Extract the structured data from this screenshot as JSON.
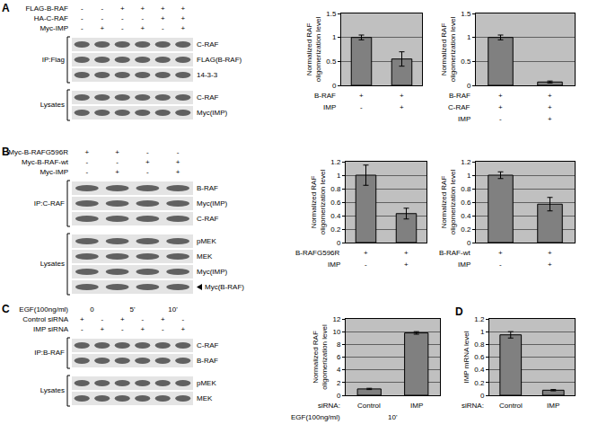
{
  "chart_data": [
    {
      "type": "bar",
      "ylabel": "Normalized RAF oligomerization level",
      "categories": [
        null,
        null
      ],
      "values": [
        1.0,
        0.55
      ],
      "error": [
        0.05,
        0.15
      ],
      "color": "#808080",
      "ylim": [
        0,
        1.5
      ],
      "yticks": [
        0,
        0.5,
        1,
        1.5
      ],
      "grid": true,
      "conditions": [
        {
          "label": "B-RAF",
          "values": [
            "+",
            "+"
          ]
        },
        {
          "label": "IMP",
          "values": [
            "-",
            "+"
          ]
        }
      ]
    },
    {
      "type": "bar",
      "ylabel": "Normalized RAF oligomerization level",
      "categories": [
        null,
        null
      ],
      "values": [
        1.0,
        0.07
      ],
      "error": [
        0.05,
        0.02
      ],
      "color": "#808080",
      "ylim": [
        0,
        1.5
      ],
      "yticks": [
        0,
        0.5,
        1,
        1.5
      ],
      "grid": true,
      "conditions": [
        {
          "label": "B-RAF",
          "values": [
            "+",
            "+"
          ]
        },
        {
          "label": "C-RAF",
          "values": [
            "+",
            "+"
          ]
        },
        {
          "label": "IMP",
          "values": [
            "-",
            "+"
          ]
        }
      ]
    },
    {
      "type": "bar",
      "ylabel": "Normalized RAF oligomerization level",
      "categories": [
        null,
        null
      ],
      "values": [
        1.0,
        0.43
      ],
      "error": [
        0.15,
        0.08
      ],
      "color": "#808080",
      "ylim": [
        0,
        1.2
      ],
      "yticks": [
        0,
        0.2,
        0.4,
        0.6,
        0.8,
        1,
        1.2
      ],
      "grid": true,
      "conditions": [
        {
          "label": "B-RAFG596R",
          "values": [
            "+",
            "+"
          ]
        },
        {
          "label": "IMP",
          "values": [
            "-",
            "+"
          ]
        }
      ]
    },
    {
      "type": "bar",
      "ylabel": "Normalized RAF oligomerization level",
      "categories": [
        null,
        null
      ],
      "values": [
        1.0,
        0.57
      ],
      "error": [
        0.05,
        0.1
      ],
      "color": "#808080",
      "ylim": [
        0,
        1.2
      ],
      "yticks": [
        0,
        0.2,
        0.4,
        0.6,
        0.8,
        1,
        1.2
      ],
      "grid": true,
      "conditions": [
        {
          "label": "B-RAF-wt",
          "values": [
            "+",
            "+"
          ]
        },
        {
          "label": "IMP",
          "values": [
            "-",
            "+"
          ]
        }
      ]
    },
    {
      "type": "bar",
      "ylabel": "Normalized RAF oligomerization level",
      "categories": [
        null,
        null
      ],
      "values": [
        1.0,
        9.8
      ],
      "error": [
        0.1,
        0.2
      ],
      "color": "#808080",
      "ylim": [
        0,
        12
      ],
      "yticks": [
        0,
        2,
        4,
        6,
        8,
        10,
        12
      ],
      "grid": true,
      "conditions": [
        {
          "label": "siRNA:",
          "values": [
            "Control",
            "IMP"
          ]
        },
        {
          "label": "EGF(100ng/ml)",
          "values": [
            "10'"
          ]
        }
      ]
    },
    {
      "type": "bar",
      "panel": "D",
      "ylabel": "IMP mRNA level",
      "categories": [
        null,
        null
      ],
      "values": [
        0.95,
        0.08
      ],
      "error": [
        0.05,
        0.01
      ],
      "color": "#808080",
      "ylim": [
        0,
        1.2
      ],
      "yticks": [
        0,
        0.2,
        0.4,
        0.6,
        0.8,
        1,
        1.2
      ],
      "grid": true,
      "conditions": [
        {
          "label": "siRNA:",
          "values": [
            "Control",
            "IMP"
          ]
        }
      ]
    }
  ],
  "blots": [
    {
      "panel": "A",
      "headers": [
        {
          "label": "FLAG-B-RAF",
          "values": [
            "-",
            "-",
            "+",
            "+",
            "+",
            "+"
          ]
        },
        {
          "label": "HA-C-RAF",
          "values": [
            "-",
            "-",
            "-",
            "-",
            "+",
            "+"
          ]
        },
        {
          "label": "Myc-IMP",
          "values": [
            "-",
            "+",
            "-",
            "+",
            "-",
            "+"
          ]
        }
      ],
      "groups": [
        {
          "label": "IP:Flag",
          "rows": [
            "C-RAF",
            "FLAG(B-RAF)",
            "14-3-3"
          ]
        },
        {
          "label": "Lysates",
          "rows": [
            "C-RAF",
            "Myc(IMP)"
          ]
        }
      ]
    },
    {
      "panel": "B",
      "headers": [
        {
          "label": "Myc-B-RAFG596R",
          "values": [
            "+",
            "+",
            "-",
            "-"
          ]
        },
        {
          "label": "Myc-B-RAF-wt",
          "values": [
            "-",
            "-",
            "+",
            "+"
          ]
        },
        {
          "label": "Myc-IMP",
          "values": [
            "-",
            "+",
            "-",
            "+"
          ]
        }
      ],
      "groups": [
        {
          "label": "IP:C-RAF",
          "rows": [
            "B-RAF",
            "Myc(IMP)",
            "C-RAF"
          ]
        },
        {
          "label": "Lysates",
          "rows": [
            "pMEK",
            "MEK",
            "Myc(IMP)",
            "Myc(B-RAF)"
          ],
          "pointer": "Myc(B-RAF)"
        }
      ]
    },
    {
      "panel": "C",
      "headers": [
        {
          "label": "EGF(100ng/ml)",
          "values": [
            "0",
            "5'",
            "10'"
          ]
        },
        {
          "label": "Control siRNA",
          "values": [
            "+",
            "-",
            "+",
            "-",
            "+",
            "-"
          ]
        },
        {
          "label": "IMP siRNA",
          "values": [
            "-",
            "+",
            "-",
            "+",
            "-",
            "+"
          ]
        }
      ],
      "groups": [
        {
          "label": "IP:B-RAF",
          "rows": [
            "C-RAF",
            "B-RAF"
          ]
        },
        {
          "label": "Lysates",
          "rows": [
            "pMEK",
            "MEK"
          ]
        }
      ]
    }
  ]
}
